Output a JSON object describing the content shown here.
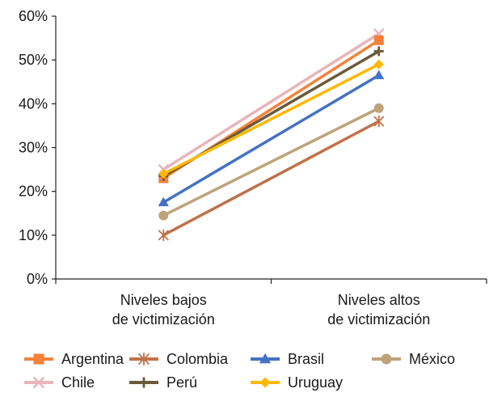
{
  "chart_data": {
    "type": "line",
    "categories": [
      [
        "Niveles bajos",
        "de victimización"
      ],
      [
        "Niveles altos",
        "de victimización"
      ]
    ],
    "ylim": [
      0,
      60
    ],
    "yticks": [
      "0%",
      "10%",
      "20%",
      "30%",
      "40%",
      "50%",
      "60%"
    ],
    "grid": false,
    "legend_position": "bottom",
    "series": [
      {
        "name": "Chile",
        "values": [
          25,
          56
        ],
        "color": "#e8b4bc",
        "marker": "x"
      },
      {
        "name": "Argentina",
        "values": [
          23,
          54.5
        ],
        "color": "#f5823a",
        "marker": "square"
      },
      {
        "name": "Perú",
        "values": [
          23.5,
          52
        ],
        "color": "#6b5a3a",
        "marker": "plus"
      },
      {
        "name": "Uruguay",
        "values": [
          24,
          49
        ],
        "color": "#ffb800",
        "marker": "diamond"
      },
      {
        "name": "Brasil",
        "values": [
          17.5,
          46.5
        ],
        "color": "#4472c4",
        "marker": "triangle"
      },
      {
        "name": "México",
        "values": [
          14.5,
          39
        ],
        "color": "#c0a27a",
        "marker": "circle"
      },
      {
        "name": "Colombia",
        "values": [
          10,
          36
        ],
        "color": "#c0714a",
        "marker": "star"
      }
    ],
    "legend_order": [
      "Argentina",
      "Colombia",
      "Brasil",
      "México",
      "Chile",
      "Perú",
      "Uruguay"
    ]
  }
}
